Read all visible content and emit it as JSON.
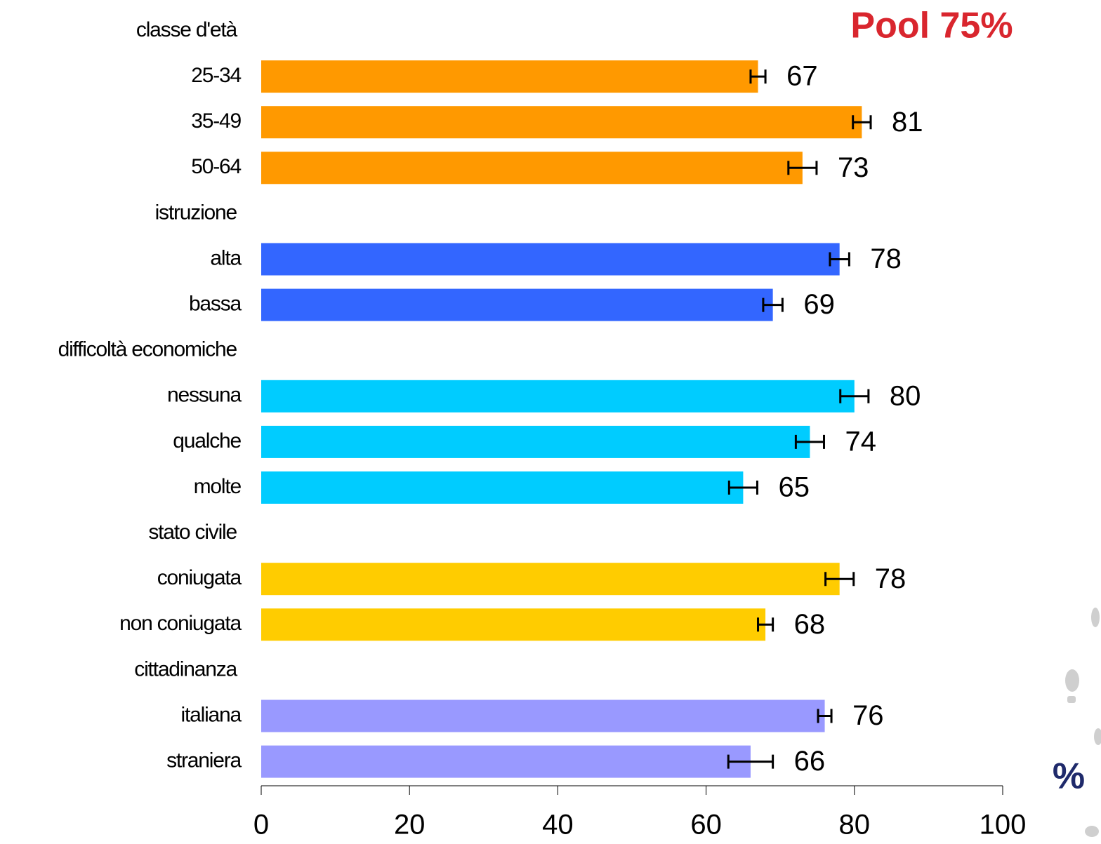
{
  "chart_data": {
    "type": "bar",
    "orientation": "horizontal",
    "title": "Pool 75%",
    "xlabel": "%",
    "xlim": [
      0,
      100
    ],
    "xticks": [
      0,
      20,
      40,
      60,
      80,
      100
    ],
    "grid": false,
    "groups": [
      {
        "name": "classe d'età",
        "color": "#FF9900",
        "categories": [
          "25-34",
          "35-49",
          "50-64"
        ],
        "values": [
          67,
          81,
          73
        ],
        "errors": [
          1,
          1.2,
          1.9
        ]
      },
      {
        "name": "istruzione",
        "color": "#3366FF",
        "categories": [
          "alta",
          "bassa"
        ],
        "values": [
          78,
          69
        ],
        "errors": [
          1.3,
          1.3
        ]
      },
      {
        "name": "difficoltà economiche",
        "color": "#00CCFF",
        "categories": [
          "nessuna",
          "qualche",
          "molte"
        ],
        "values": [
          80,
          74,
          65
        ],
        "errors": [
          1.9,
          1.9,
          1.9
        ]
      },
      {
        "name": "stato civile",
        "color": "#FFCC00",
        "categories": [
          "coniugata",
          "non coniugata"
        ],
        "values": [
          78,
          68
        ],
        "errors": [
          1.9,
          1
        ]
      },
      {
        "name": "cittadinanza",
        "color": "#9999FF",
        "categories": [
          "italiana",
          "straniera"
        ],
        "values": [
          76,
          66
        ],
        "errors": [
          0.9,
          3
        ]
      }
    ]
  }
}
